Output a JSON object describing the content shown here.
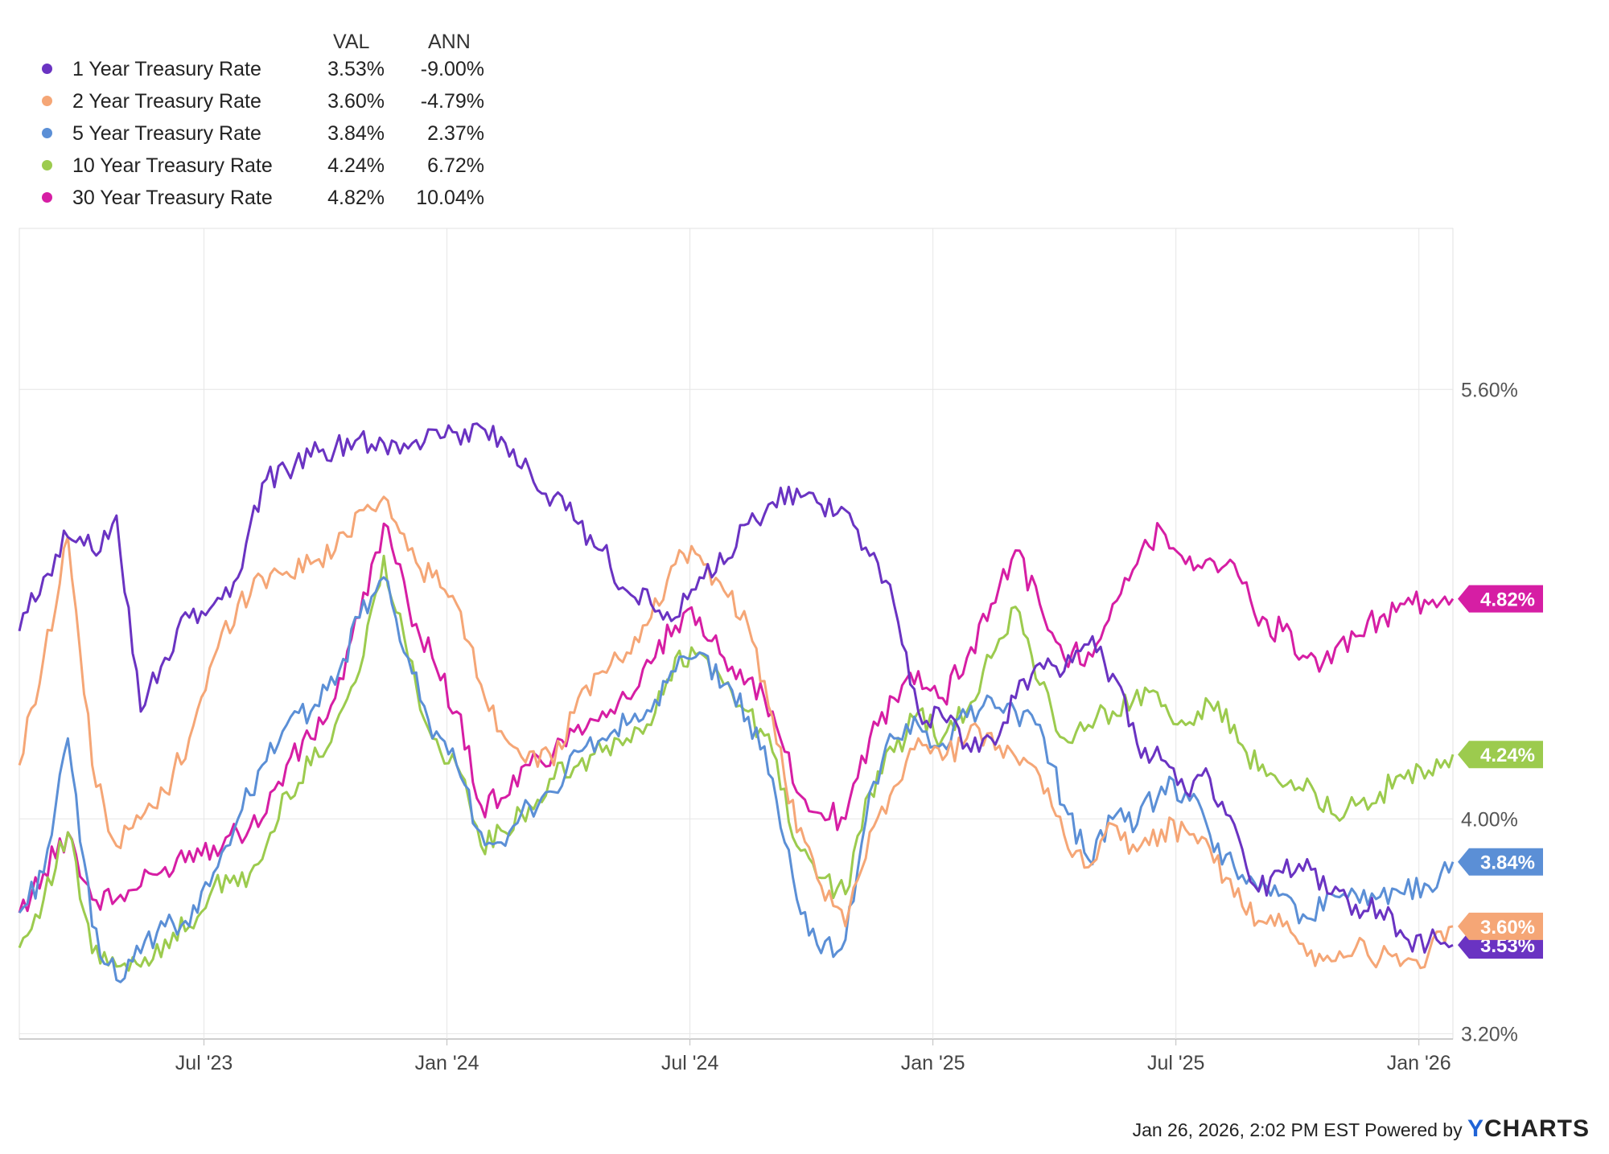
{
  "legend": {
    "header_val": "VAL",
    "header_ann": "ANN",
    "rows": [
      {
        "name": "1 Year Treasury Rate",
        "val": "3.53%",
        "ann": "-9.00%"
      },
      {
        "name": "2 Year Treasury Rate",
        "val": "3.60%",
        "ann": "-4.79%"
      },
      {
        "name": "5 Year Treasury Rate",
        "val": "3.84%",
        "ann": "2.37%"
      },
      {
        "name": "10 Year Treasury Rate",
        "val": "4.24%",
        "ann": "6.72%"
      },
      {
        "name": "30 Year Treasury Rate",
        "val": "4.82%",
        "ann": "10.04%"
      }
    ]
  },
  "colors": {
    "1y": "#6a33c2",
    "2y": "#f5a676",
    "5y": "#5b8fd6",
    "10y": "#9ccb4e",
    "30y": "#d61ea4"
  },
  "chart_data": {
    "type": "line",
    "x_start": 2023.12,
    "x_end": 2026.07,
    "xlim": [
      2023.12,
      2026.07
    ],
    "ylim": [
      3.18,
      6.2
    ],
    "y_ticks": [
      {
        "value": 5.6,
        "label": "5.60%"
      },
      {
        "value": 4.0,
        "label": "4.00%"
      },
      {
        "value": 3.2,
        "label": "3.20%"
      }
    ],
    "x_ticks": [
      {
        "value": 2023.5,
        "label": "Jul '23"
      },
      {
        "value": 2024.0,
        "label": "Jan '24"
      },
      {
        "value": 2024.5,
        "label": "Jul '24"
      },
      {
        "value": 2025.0,
        "label": "Jan '25"
      },
      {
        "value": 2025.5,
        "label": "Jul '25"
      },
      {
        "value": 2026.0,
        "label": "Jan '26"
      }
    ],
    "series": [
      {
        "key": "1y",
        "name": "1 Year Treasury Rate",
        "end_label": "3.53%",
        "values": [
          4.7,
          4.9,
          5.05,
          5.0,
          5.13,
          4.4,
          4.6,
          4.75,
          4.8,
          4.9,
          5.25,
          5.3,
          5.35,
          5.38,
          5.42,
          5.4,
          5.38,
          5.45,
          5.44,
          5.46,
          5.4,
          5.3,
          5.2,
          5.1,
          5.0,
          4.85,
          4.8,
          4.75,
          4.9,
          4.95,
          5.1,
          5.18,
          5.23,
          5.17,
          5.15,
          4.98,
          4.8,
          4.4,
          4.38,
          4.28,
          4.3,
          4.45,
          4.58,
          4.55,
          4.65,
          4.54,
          4.28,
          4.22,
          4.1,
          4.15,
          3.98,
          3.73,
          3.8,
          3.85,
          3.72,
          3.68,
          3.66,
          3.56,
          3.54,
          3.53
        ]
      },
      {
        "key": "2y",
        "name": "2 Year Treasury Rate",
        "end_label": "3.60%",
        "values": [
          4.2,
          4.6,
          5.05,
          4.2,
          3.9,
          4.0,
          4.1,
          4.3,
          4.6,
          4.8,
          4.9,
          4.92,
          4.95,
          5.0,
          5.15,
          5.2,
          5.0,
          4.9,
          4.8,
          4.5,
          4.3,
          4.25,
          4.2,
          4.45,
          4.55,
          4.62,
          4.75,
          4.95,
          4.98,
          4.85,
          4.72,
          4.38,
          3.95,
          3.75,
          3.6,
          3.95,
          4.12,
          4.3,
          4.22,
          4.3,
          4.32,
          4.23,
          4.16,
          3.94,
          3.82,
          3.98,
          3.88,
          3.96,
          3.96,
          3.89,
          3.71,
          3.62,
          3.6,
          3.49,
          3.47,
          3.52,
          3.48,
          3.47,
          3.5,
          3.6
        ]
      },
      {
        "key": "5y",
        "name": "5 Year Treasury Rate",
        "end_label": "3.84%",
        "values": [
          3.65,
          3.8,
          4.3,
          3.6,
          3.4,
          3.5,
          3.6,
          3.6,
          3.8,
          4.0,
          4.2,
          4.35,
          4.4,
          4.5,
          4.75,
          4.9,
          4.6,
          4.3,
          4.2,
          3.95,
          3.9,
          4.05,
          4.1,
          4.25,
          4.3,
          4.35,
          4.4,
          4.55,
          4.62,
          4.5,
          4.38,
          4.15,
          3.7,
          3.5,
          3.55,
          4.1,
          4.3,
          4.35,
          4.28,
          4.38,
          4.45,
          4.4,
          4.35,
          4.05,
          3.85,
          4.0,
          3.98,
          4.12,
          4.1,
          3.94,
          3.82,
          3.73,
          3.72,
          3.63,
          3.72,
          3.72,
          3.71,
          3.72,
          3.75,
          3.84
        ]
      },
      {
        "key": "10y",
        "name": "10 Year Treasury Rate",
        "end_label": "4.24%",
        "values": [
          3.52,
          3.7,
          3.95,
          3.5,
          3.45,
          3.45,
          3.55,
          3.6,
          3.75,
          3.75,
          3.85,
          4.1,
          4.2,
          4.35,
          4.55,
          4.98,
          4.6,
          4.3,
          4.2,
          3.9,
          3.95,
          4.05,
          4.15,
          4.2,
          4.25,
          4.3,
          4.35,
          4.6,
          4.62,
          4.5,
          4.4,
          4.25,
          3.9,
          3.78,
          3.72,
          4.1,
          4.25,
          4.4,
          4.3,
          4.4,
          4.6,
          4.79,
          4.5,
          4.3,
          4.35,
          4.4,
          4.48,
          4.42,
          4.35,
          4.43,
          4.35,
          4.18,
          4.12,
          4.15,
          4.02,
          4.05,
          4.1,
          4.15,
          4.18,
          4.24
        ]
      },
      {
        "key": "30y",
        "name": "30 Year Treasury Rate",
        "end_label": "4.82%",
        "values": [
          3.65,
          3.8,
          3.95,
          3.7,
          3.7,
          3.75,
          3.82,
          3.88,
          3.9,
          3.95,
          4.0,
          4.2,
          4.3,
          4.45,
          4.75,
          5.1,
          4.8,
          4.6,
          4.4,
          4.05,
          4.08,
          4.2,
          4.25,
          4.35,
          4.4,
          4.45,
          4.58,
          4.72,
          4.75,
          4.6,
          4.52,
          4.4,
          4.1,
          4.02,
          4.0,
          4.3,
          4.45,
          4.55,
          4.45,
          4.6,
          4.8,
          5.0,
          4.8,
          4.6,
          4.62,
          4.8,
          4.95,
          5.08,
          4.95,
          4.97,
          4.95,
          4.72,
          4.7,
          4.6,
          4.58,
          4.68,
          4.75,
          4.8,
          4.8,
          4.82
        ]
      }
    ]
  },
  "footer": {
    "timestamp": "Jan 26, 2026, 2:02 PM EST",
    "powered_by": "Powered by",
    "brand_y": "Y",
    "brand_rest": "CHARTS"
  }
}
